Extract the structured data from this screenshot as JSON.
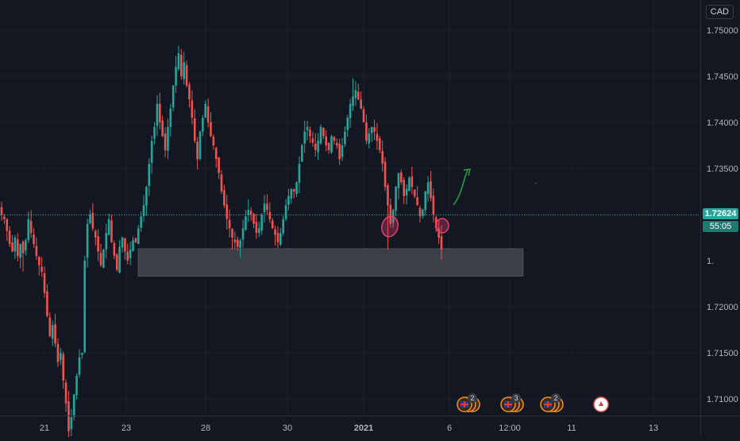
{
  "chart": {
    "currency": "CAD",
    "last_price": "1.72624",
    "countdown": "55:05",
    "colors": {
      "background": "#131722",
      "bullish": "#26a69a",
      "bearish": "#ef5350",
      "annotation_circle": "#e0406d",
      "arrow": "#2ea043",
      "zone": "#4a4d55"
    }
  },
  "y_axis_labels": [
    "1.75000",
    "1.74500",
    "1.74000",
    "1.73500",
    "1.73000",
    "1.72000",
    "1.71500",
    "1.71000",
    "1.70500"
  ],
  "x_axis_labels": [
    "21",
    "23",
    "28",
    "30",
    "2021",
    "6",
    "12:00",
    "11",
    "13"
  ],
  "events": [
    {
      "icon": "uk-flag-icon",
      "count": "2"
    },
    {
      "icon": "uk-flag-icon",
      "count": "3"
    },
    {
      "icon": "uk-flag-icon",
      "count": "2"
    },
    {
      "icon": "canada-flag-icon",
      "count": ""
    }
  ],
  "chart_data": {
    "type": "candlestick",
    "ylim": [
      1.7015,
      1.753
    ],
    "support_zone": [
      1.7233,
      1.7263
    ],
    "grid": true,
    "close_series": [
      1.73,
      1.7295,
      1.7282,
      1.7268,
      1.726,
      1.7275,
      1.7255,
      1.7268,
      1.7258,
      1.7272,
      1.7295,
      1.728,
      1.7268,
      1.7255,
      1.7245,
      1.7238,
      1.7215,
      1.719,
      1.7168,
      1.718,
      1.716,
      1.714,
      1.715,
      1.712,
      1.7095,
      1.7065,
      1.708,
      1.7105,
      1.7125,
      1.7145,
      1.715,
      1.725,
      1.729,
      1.73,
      1.7285,
      1.7275,
      1.726,
      1.7245,
      1.7262,
      1.728,
      1.7295,
      1.727,
      1.7255,
      1.724,
      1.7265,
      1.7275,
      1.726,
      1.725,
      1.7262,
      1.7272,
      1.727,
      1.7285,
      1.7298,
      1.731,
      1.733,
      1.7355,
      1.738,
      1.7395,
      1.742,
      1.74,
      1.7385,
      1.737,
      1.7395,
      1.7415,
      1.744,
      1.746,
      1.7475,
      1.745,
      1.7465,
      1.744,
      1.7425,
      1.7405,
      1.738,
      1.736,
      1.739,
      1.7405,
      1.742,
      1.74,
      1.7385,
      1.7375,
      1.736,
      1.7345,
      1.7325,
      1.731,
      1.7295,
      1.7285,
      1.7275,
      1.727,
      1.7265,
      1.7272,
      1.7285,
      1.7298,
      1.7305,
      1.73,
      1.729,
      1.728,
      1.7285,
      1.73,
      1.7312,
      1.7305,
      1.7295,
      1.7285,
      1.7278,
      1.727,
      1.728,
      1.7295,
      1.731,
      1.732,
      1.7328,
      1.7325,
      1.7335,
      1.7355,
      1.7375,
      1.739,
      1.7395,
      1.7385,
      1.7378,
      1.737,
      1.738,
      1.7395,
      1.7385,
      1.7375,
      1.737,
      1.7385,
      1.738,
      1.7375,
      1.736,
      1.7375,
      1.739,
      1.7405,
      1.742,
      1.7428,
      1.7435,
      1.7425,
      1.7415,
      1.74,
      1.738,
      1.7388,
      1.7395,
      1.739,
      1.738,
      1.737,
      1.7355,
      1.733,
      1.731,
      1.729,
      1.7305,
      1.733,
      1.7345,
      1.7335,
      1.732,
      1.7328,
      1.734,
      1.733,
      1.732,
      1.731,
      1.7298,
      1.7305,
      1.7325,
      1.7335,
      1.7318,
      1.73,
      1.7285,
      1.7275,
      1.7262
    ]
  }
}
